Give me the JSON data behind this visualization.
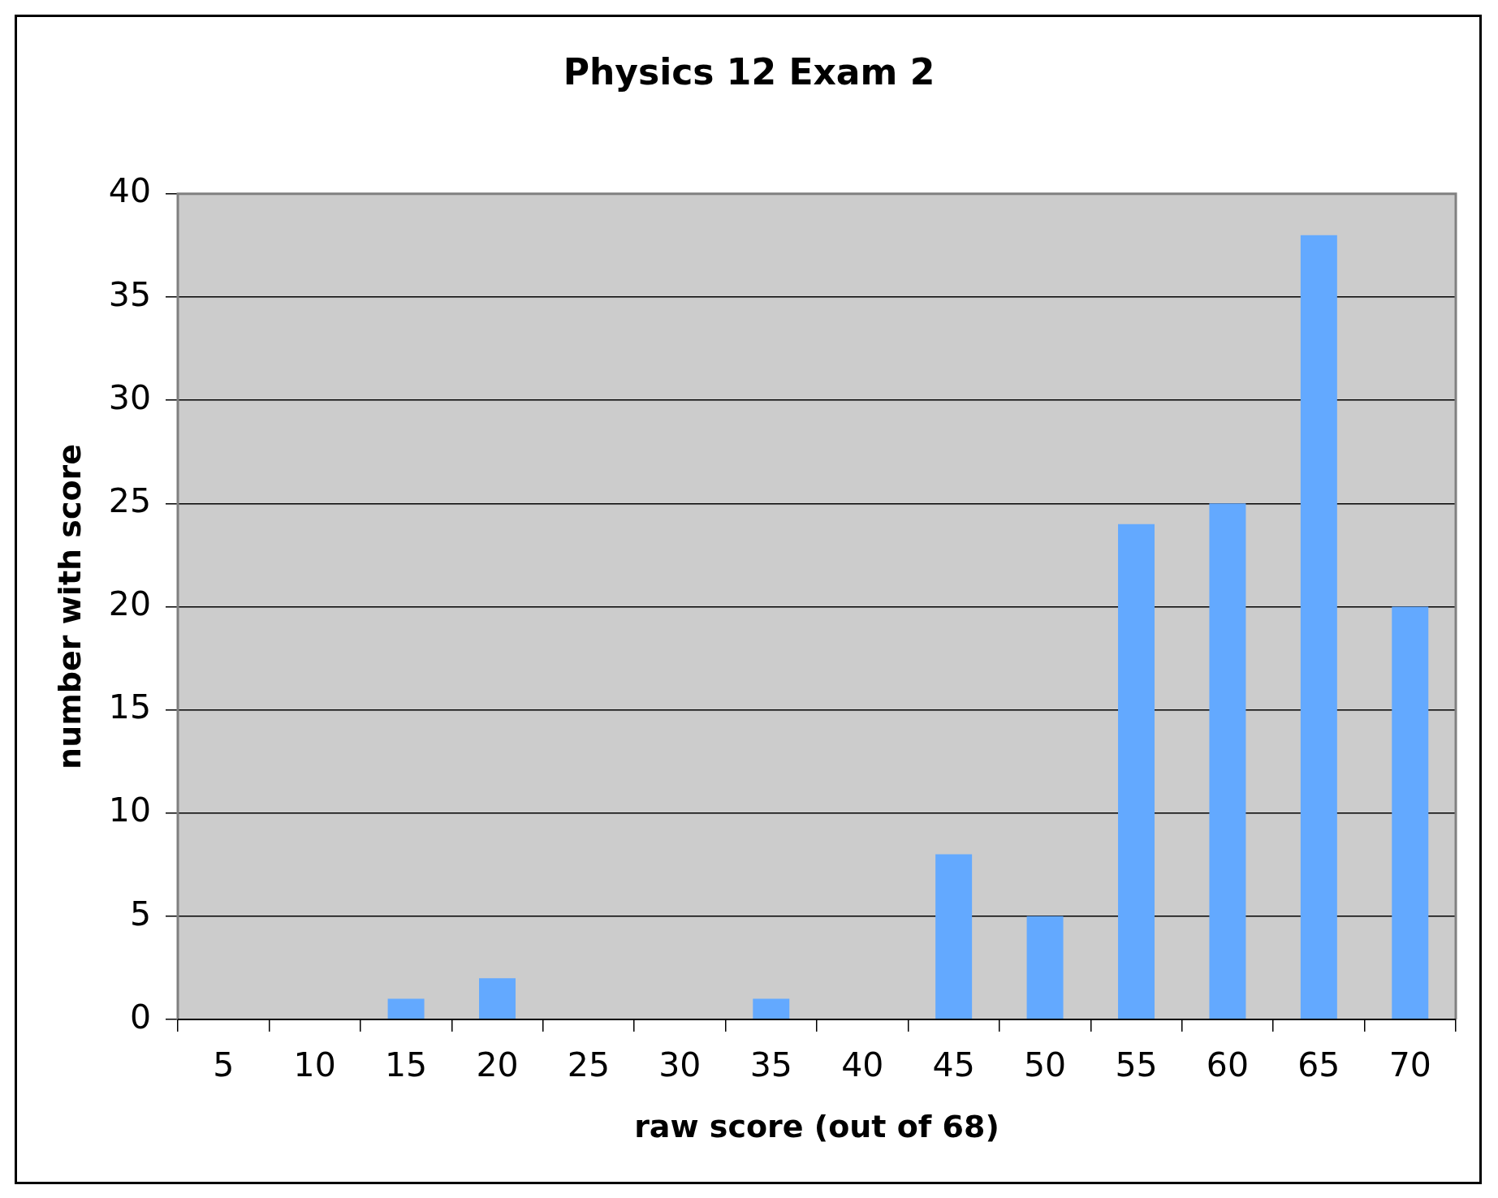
{
  "chart_data": {
    "type": "bar",
    "title": "Physics 12 Exam 2",
    "xlabel": "raw score (out of 68)",
    "ylabel": "number with score",
    "categories": [
      "5",
      "10",
      "15",
      "20",
      "25",
      "30",
      "35",
      "40",
      "45",
      "50",
      "55",
      "60",
      "65",
      "70"
    ],
    "values": [
      0,
      0,
      1,
      2,
      0,
      0,
      1,
      0,
      8,
      5,
      24,
      25,
      38,
      20
    ],
    "color": "#63a9ff",
    "ylim": [
      0,
      40
    ],
    "yticks": [
      0,
      5,
      10,
      15,
      20,
      25,
      30,
      35,
      40
    ],
    "grid": "y",
    "legend": false
  }
}
